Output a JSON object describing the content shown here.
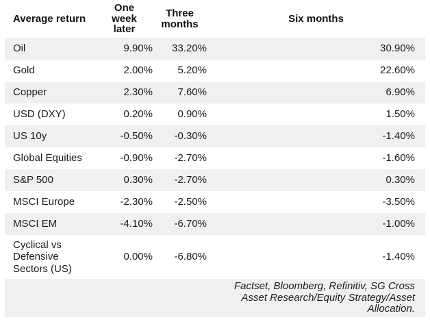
{
  "chart_data": {
    "type": "table",
    "title": "Average return",
    "columns": [
      "Average return",
      "One week later",
      "Three months",
      "Six months"
    ],
    "rows": [
      {
        "label": "Oil",
        "one_week": "9.90%",
        "three_months": "33.20%",
        "six_months": "30.90%"
      },
      {
        "label": "Gold",
        "one_week": "2.00%",
        "three_months": "5.20%",
        "six_months": "22.60%"
      },
      {
        "label": "Copper",
        "one_week": "2.30%",
        "three_months": "7.60%",
        "six_months": "6.90%"
      },
      {
        "label": "USD (DXY)",
        "one_week": "0.20%",
        "three_months": "0.90%",
        "six_months": "1.50%"
      },
      {
        "label": "US 10y",
        "one_week": "-0.50%",
        "three_months": "-0.30%",
        "six_months": "-1.40%"
      },
      {
        "label": "Global Equities",
        "one_week": "-0.90%",
        "three_months": "-2.70%",
        "six_months": "-1.60%"
      },
      {
        "label": "S&P 500",
        "one_week": "0.30%",
        "three_months": "-2.70%",
        "six_months": "0.30%"
      },
      {
        "label": "MSCI Europe",
        "one_week": "-2.30%",
        "three_months": "-2.50%",
        "six_months": "-3.50%"
      },
      {
        "label": "MSCI EM",
        "one_week": "-4.10%",
        "three_months": "-6.70%",
        "six_months": "-1.00%"
      },
      {
        "label": "Cyclical vs Defensive Sectors (US)",
        "one_week": "0.00%",
        "three_months": "-6.80%",
        "six_months": "-1.40%"
      }
    ],
    "source_note": "Factset, Bloomberg, Refinitiv, SG Cross Asset Research/Equity Strategy/Asset Allocation.",
    "layout": {
      "stripe_color": "#f0f0f0",
      "text_color": "#1a1a1a",
      "header_text_color": "#111111",
      "grid": "off",
      "value_alignment": "right",
      "striped_rows": "odd"
    }
  }
}
